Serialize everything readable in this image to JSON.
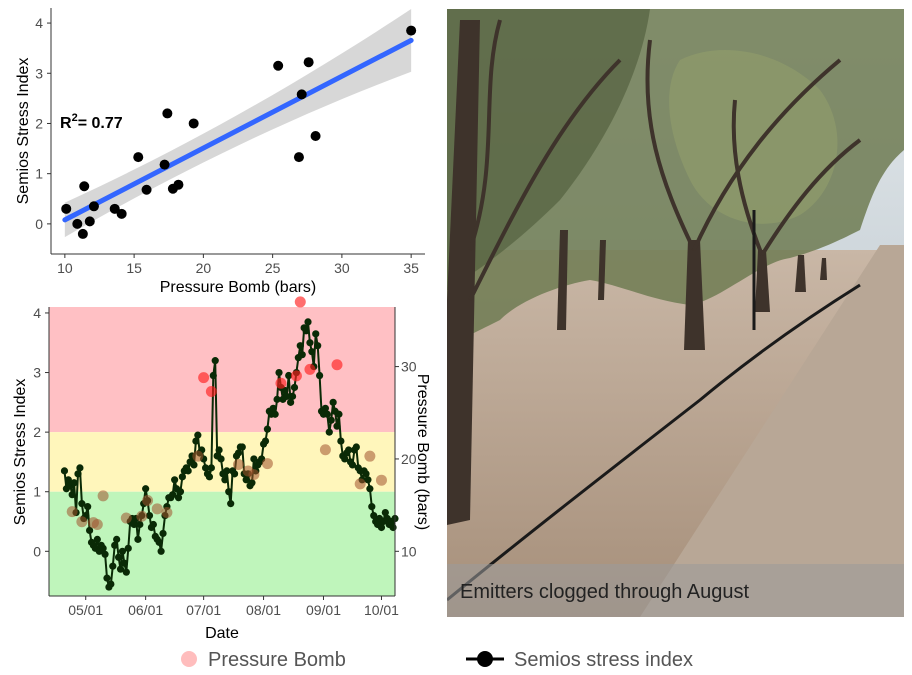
{
  "chart_data": [
    {
      "type": "scatter",
      "xlabel": "Pressure Bomb (bars)",
      "ylabel": "Semios Stress Index",
      "xlim": [
        9,
        36
      ],
      "ylim": [
        -0.6,
        4.3
      ],
      "xticks": [
        10,
        15,
        20,
        25,
        30,
        35
      ],
      "yticks": [
        0,
        1,
        2,
        3,
        4
      ],
      "annotation": {
        "label": "R",
        "exponent": "2",
        "rest": "= 0.77"
      },
      "regression": {
        "slope": 0.143,
        "intercept": -1.35,
        "x_range": [
          10,
          35
        ]
      },
      "points": [
        {
          "x": 10.1,
          "y": 0.3
        },
        {
          "x": 10.9,
          "y": 0.0
        },
        {
          "x": 11.3,
          "y": -0.2
        },
        {
          "x": 11.4,
          "y": 0.75
        },
        {
          "x": 11.8,
          "y": 0.05
        },
        {
          "x": 12.1,
          "y": 0.35
        },
        {
          "x": 13.6,
          "y": 0.3
        },
        {
          "x": 14.1,
          "y": 0.2
        },
        {
          "x": 15.3,
          "y": 1.33
        },
        {
          "x": 15.9,
          "y": 0.68
        },
        {
          "x": 17.2,
          "y": 1.18
        },
        {
          "x": 17.4,
          "y": 2.2
        },
        {
          "x": 17.8,
          "y": 0.7
        },
        {
          "x": 18.2,
          "y": 0.78
        },
        {
          "x": 19.3,
          "y": 2.0
        },
        {
          "x": 25.4,
          "y": 3.15
        },
        {
          "x": 26.9,
          "y": 1.33
        },
        {
          "x": 27.1,
          "y": 2.58
        },
        {
          "x": 27.6,
          "y": 3.22
        },
        {
          "x": 28.1,
          "y": 1.75
        },
        {
          "x": 35.0,
          "y": 3.85
        }
      ]
    },
    {
      "type": "line",
      "xlabel": "Date",
      "ylabel": "Semios Stress Index",
      "y2label": "Pressure Bomb (bars)",
      "xticks": [
        "05/01",
        "06/01",
        "07/01",
        "08/01",
        "09/01",
        "10/01"
      ],
      "yticks": [
        0,
        1,
        2,
        3,
        4
      ],
      "y2ticks": [
        10,
        20,
        30
      ],
      "ylim": [
        -0.75,
        4.1
      ],
      "x_start": "04/12",
      "x_end": "10/08",
      "bands": [
        {
          "from": 2.0,
          "to": 4.1,
          "color": "#ffc0c4"
        },
        {
          "from": 1.0,
          "to": 2.0,
          "color": "#fff6bb"
        },
        {
          "from": -0.75,
          "to": 1.0,
          "color": "#bff5bb"
        }
      ],
      "series": [
        {
          "name": "Semios stress index",
          "color": "#0a2a06",
          "points": [
            [
              "04/20",
              1.35
            ],
            [
              "04/21",
              1.05
            ],
            [
              "04/22",
              1.2
            ],
            [
              "04/23",
              1.1
            ],
            [
              "04/24",
              0.95
            ],
            [
              "04/25",
              1.15
            ],
            [
              "04/26",
              0.65
            ],
            [
              "04/27",
              1.3
            ],
            [
              "04/28",
              1.4
            ],
            [
              "04/29",
              0.8
            ],
            [
              "04/30",
              0.55
            ],
            [
              "05/01",
              0.6
            ],
            [
              "05/02",
              0.75
            ],
            [
              "05/03",
              0.35
            ],
            [
              "05/04",
              0.15
            ],
            [
              "05/05",
              0.1
            ],
            [
              "05/06",
              0.05
            ],
            [
              "05/07",
              0.2
            ],
            [
              "05/08",
              0.0
            ],
            [
              "05/09",
              0.1
            ],
            [
              "05/10",
              0.05
            ],
            [
              "05/11",
              -0.05
            ],
            [
              "05/12",
              -0.45
            ],
            [
              "05/13",
              -0.6
            ],
            [
              "05/14",
              -0.55
            ],
            [
              "05/15",
              -0.25
            ],
            [
              "05/16",
              0.1
            ],
            [
              "05/17",
              0.2
            ],
            [
              "05/18",
              -0.1
            ],
            [
              "05/19",
              -0.3
            ],
            [
              "05/20",
              0.0
            ],
            [
              "05/21",
              -0.2
            ],
            [
              "05/22",
              -0.35
            ],
            [
              "05/23",
              0.05
            ],
            [
              "05/24",
              0.5
            ],
            [
              "05/25",
              0.55
            ],
            [
              "05/26",
              0.45
            ],
            [
              "05/27",
              0.55
            ],
            [
              "05/28",
              0.2
            ],
            [
              "05/29",
              0.45
            ],
            [
              "05/30",
              0.6
            ],
            [
              "05/31",
              0.8
            ],
            [
              "06/01",
              1.05
            ],
            [
              "06/02",
              0.85
            ],
            [
              "06/03",
              0.6
            ],
            [
              "06/04",
              0.4
            ],
            [
              "06/05",
              0.45
            ],
            [
              "06/06",
              0.25
            ],
            [
              "06/07",
              0.2
            ],
            [
              "06/08",
              0.15
            ],
            [
              "06/09",
              0.0
            ],
            [
              "06/10",
              0.3
            ],
            [
              "06/11",
              0.6
            ],
            [
              "06/12",
              0.75
            ],
            [
              "06/13",
              0.9
            ],
            [
              "06/14",
              0.9
            ],
            [
              "06/15",
              0.95
            ],
            [
              "06/16",
              1.2
            ],
            [
              "06/17",
              1.05
            ],
            [
              "06/18",
              0.9
            ],
            [
              "06/19",
              1.0
            ],
            [
              "06/20",
              1.25
            ],
            [
              "06/21",
              1.35
            ],
            [
              "06/22",
              1.4
            ],
            [
              "06/23",
              1.35
            ],
            [
              "06/24",
              1.5
            ],
            [
              "06/25",
              1.6
            ],
            [
              "06/26",
              1.45
            ],
            [
              "06/27",
              1.85
            ],
            [
              "06/28",
              1.95
            ],
            [
              "06/29",
              1.65
            ],
            [
              "06/30",
              1.7
            ],
            [
              "07/01",
              1.55
            ],
            [
              "07/02",
              1.4
            ],
            [
              "07/03",
              1.3
            ],
            [
              "07/04",
              1.25
            ],
            [
              "07/05",
              1.4
            ],
            [
              "07/06",
              2.95
            ],
            [
              "07/07",
              3.2
            ],
            [
              "07/08",
              1.6
            ],
            [
              "07/09",
              1.7
            ],
            [
              "07/10",
              1.55
            ],
            [
              "07/11",
              1.3
            ],
            [
              "07/12",
              1.2
            ],
            [
              "07/13",
              1.35
            ],
            [
              "07/14",
              1.0
            ],
            [
              "07/15",
              0.8
            ],
            [
              "07/16",
              1.35
            ],
            [
              "07/17",
              1.3
            ],
            [
              "07/18",
              1.6
            ],
            [
              "07/19",
              1.65
            ],
            [
              "07/20",
              1.75
            ],
            [
              "07/21",
              1.75
            ],
            [
              "07/22",
              1.3
            ],
            [
              "07/23",
              1.2
            ],
            [
              "07/24",
              1.3
            ],
            [
              "07/25",
              1.1
            ],
            [
              "07/26",
              1.15
            ],
            [
              "07/27",
              1.55
            ],
            [
              "07/28",
              1.35
            ],
            [
              "07/29",
              1.45
            ],
            [
              "07/30",
              1.5
            ],
            [
              "07/31",
              1.55
            ],
            [
              "08/01",
              1.8
            ],
            [
              "08/02",
              1.85
            ],
            [
              "08/03",
              2.05
            ],
            [
              "08/04",
              2.35
            ],
            [
              "08/05",
              2.3
            ],
            [
              "08/06",
              2.4
            ],
            [
              "08/07",
              2.3
            ],
            [
              "08/08",
              2.55
            ],
            [
              "08/09",
              3.0
            ],
            [
              "08/10",
              2.75
            ],
            [
              "08/11",
              2.55
            ],
            [
              "08/12",
              2.7
            ],
            [
              "08/13",
              2.6
            ],
            [
              "08/14",
              2.95
            ],
            [
              "08/15",
              2.5
            ],
            [
              "08/16",
              2.6
            ],
            [
              "08/17",
              2.75
            ],
            [
              "08/18",
              3.0
            ],
            [
              "08/19",
              3.25
            ],
            [
              "08/20",
              3.45
            ],
            [
              "08/21",
              3.3
            ],
            [
              "08/22",
              3.75
            ],
            [
              "08/23",
              3.7
            ],
            [
              "08/24",
              3.85
            ],
            [
              "08/25",
              3.5
            ],
            [
              "08/26",
              3.35
            ],
            [
              "08/27",
              3.1
            ],
            [
              "08/28",
              3.65
            ],
            [
              "08/29",
              3.45
            ],
            [
              "08/30",
              2.95
            ],
            [
              "08/31",
              2.35
            ],
            [
              "09/01",
              2.3
            ],
            [
              "09/02",
              2.4
            ],
            [
              "09/03",
              2.3
            ],
            [
              "09/04",
              2.0
            ],
            [
              "09/05",
              2.2
            ],
            [
              "09/06",
              2.5
            ],
            [
              "09/07",
              2.35
            ],
            [
              "09/08",
              2.1
            ],
            [
              "09/09",
              2.3
            ],
            [
              "09/10",
              1.85
            ],
            [
              "09/11",
              1.6
            ],
            [
              "09/12",
              1.55
            ],
            [
              "09/13",
              1.65
            ],
            [
              "09/14",
              1.7
            ],
            [
              "09/15",
              1.5
            ],
            [
              "09/16",
              1.45
            ],
            [
              "09/17",
              1.7
            ],
            [
              "09/18",
              1.75
            ],
            [
              "09/19",
              1.4
            ],
            [
              "09/20",
              1.35
            ],
            [
              "09/21",
              1.2
            ],
            [
              "09/22",
              1.35
            ],
            [
              "09/23",
              1.3
            ],
            [
              "09/24",
              1.2
            ],
            [
              "09/25",
              1.05
            ],
            [
              "09/26",
              0.75
            ],
            [
              "09/27",
              0.6
            ],
            [
              "09/28",
              0.5
            ],
            [
              "09/29",
              0.45
            ],
            [
              "09/30",
              0.55
            ],
            [
              "10/01",
              0.4
            ],
            [
              "10/02",
              0.5
            ],
            [
              "10/03",
              0.65
            ],
            [
              "10/04",
              0.55
            ],
            [
              "10/05",
              0.45
            ],
            [
              "10/06",
              0.5
            ],
            [
              "10/07",
              0.4
            ],
            [
              "10/08",
              0.55
            ]
          ]
        },
        {
          "name": "Pressure Bomb",
          "axis": "right",
          "color_low": "#a0522d",
          "color_high": "#ff1e1e",
          "points": [
            [
              "04/24",
              14.3
            ],
            [
              "04/29",
              13.2
            ],
            [
              "05/05",
              13.1
            ],
            [
              "05/07",
              12.9
            ],
            [
              "05/10",
              16.0
            ],
            [
              "05/22",
              13.6
            ],
            [
              "05/30",
              13.8
            ],
            [
              "06/02",
              15.5
            ],
            [
              "06/07",
              14.6
            ],
            [
              "06/12",
              14.2
            ],
            [
              "06/28",
              20.3
            ],
            [
              "07/01",
              28.8
            ],
            [
              "07/05",
              27.3
            ],
            [
              "07/19",
              19.4
            ],
            [
              "07/24",
              18.7
            ],
            [
              "07/27",
              18.3
            ],
            [
              "08/03",
              19.5
            ],
            [
              "08/10",
              28.2
            ],
            [
              "08/18",
              29.0
            ],
            [
              "08/20",
              37.0
            ],
            [
              "08/25",
              29.7
            ],
            [
              "09/02",
              21.0
            ],
            [
              "09/08",
              30.2
            ],
            [
              "09/20",
              17.3
            ],
            [
              "09/25",
              20.3
            ],
            [
              "10/01",
              17.7
            ]
          ]
        }
      ],
      "legend": {
        "pressure_label": "Pressure Bomb",
        "stress_label": "Semios stress index",
        "placement": "bottom"
      }
    }
  ],
  "photo": {
    "caption": "Emitters clogged through August",
    "colors": {
      "sky": "#d8dfe4",
      "soil": "#b9a390",
      "foliage": "#6f7f4c"
    }
  }
}
